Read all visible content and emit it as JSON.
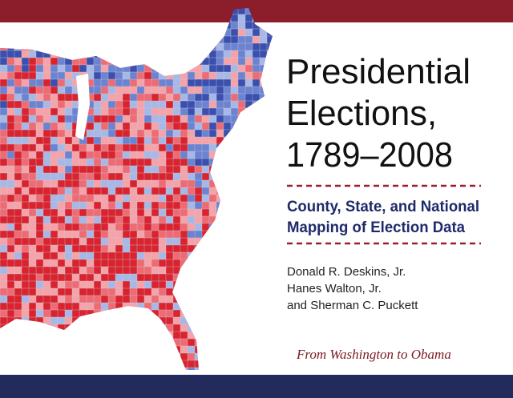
{
  "cover": {
    "title_lines": [
      "Presidential",
      "Elections,",
      "1789–2008"
    ],
    "subtitle_lines": [
      "County, State, and National",
      "Mapping of Election Data"
    ],
    "authors": [
      "Donald R. Deskins, Jr.",
      "Hanes Walton, Jr.",
      "and Sherman C. Puckett"
    ],
    "tagline": "From Washington to Obama"
  }
}
